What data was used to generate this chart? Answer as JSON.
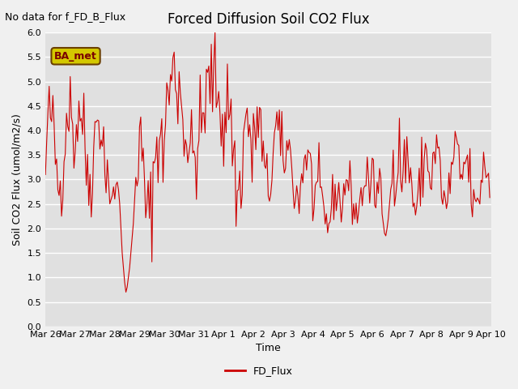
{
  "title": "Forced Diffusion Soil CO2 Flux",
  "no_data_text": "No data for f_FD_B_Flux",
  "ba_met_label": "BA_met",
  "xlabel": "Time",
  "ylabel_display": "Soil CO2 Flux (umol/m2/s)",
  "ylim": [
    0.0,
    6.0
  ],
  "yticks": [
    0.0,
    0.5,
    1.0,
    1.5,
    2.0,
    2.5,
    3.0,
    3.5,
    4.0,
    4.5,
    5.0,
    5.5,
    6.0
  ],
  "line_color": "#cc0000",
  "legend_label": "FD_Flux",
  "fig_bg_color": "#f0f0f0",
  "plot_bg_color": "#e0e0e0",
  "seed": 42
}
